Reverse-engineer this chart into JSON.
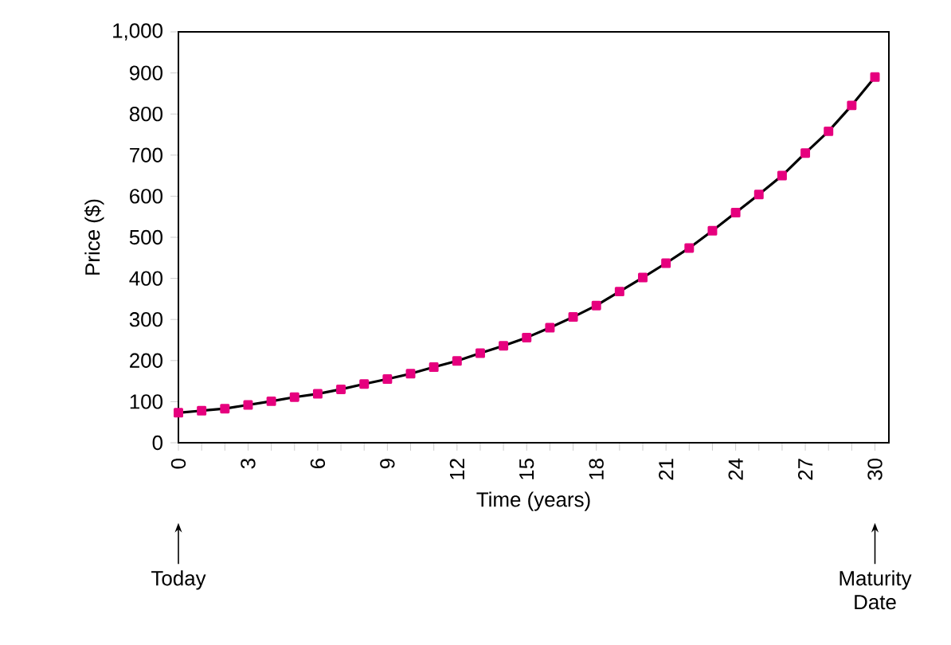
{
  "chart_data": {
    "type": "line",
    "xlabel": "Time (years)",
    "ylabel": "Price ($)",
    "x": [
      0,
      1,
      2,
      3,
      4,
      5,
      6,
      7,
      8,
      9,
      10,
      11,
      12,
      13,
      14,
      15,
      16,
      17,
      18,
      19,
      20,
      21,
      22,
      23,
      24,
      25,
      26,
      27,
      28,
      29,
      30
    ],
    "series": [
      {
        "color": "#e6007e",
        "values": [
          73,
          78,
          83,
          92,
          101,
          111,
          119,
          130,
          143,
          155,
          168,
          184,
          199,
          218,
          236,
          256,
          280,
          306,
          334,
          368,
          402,
          437,
          474,
          516,
          560,
          604,
          650,
          705,
          758,
          821,
          890
        ]
      }
    ],
    "xlim": [
      0,
      30.6
    ],
    "ylim": [
      0,
      1000
    ],
    "xticks": [
      0,
      {
        "value": 1,
        "label": null
      },
      {
        "value": 2,
        "label": null
      },
      3,
      {
        "value": 4,
        "label": null
      },
      {
        "value": 5,
        "label": null
      },
      6,
      {
        "value": 7,
        "label": null
      },
      {
        "value": 8,
        "label": null
      },
      9,
      {
        "value": 10,
        "label": null
      },
      {
        "value": 11,
        "label": null
      },
      12,
      {
        "value": 13,
        "label": null
      },
      {
        "value": 14,
        "label": null
      },
      15,
      {
        "value": 16,
        "label": null
      },
      {
        "value": 17,
        "label": null
      },
      18,
      {
        "value": 19,
        "label": null
      },
      {
        "value": 20,
        "label": null
      },
      21,
      {
        "value": 22,
        "label": null
      },
      {
        "value": 23,
        "label": null
      },
      24,
      {
        "value": 25,
        "label": null
      },
      {
        "value": 26,
        "label": null
      },
      27,
      {
        "value": 28,
        "label": null
      },
      {
        "value": 29,
        "label": null
      },
      30
    ],
    "yticks": [
      0,
      100,
      200,
      300,
      400,
      500,
      600,
      700,
      800,
      900,
      {
        "value": 1000,
        "label": "1,000"
      }
    ],
    "marker": "square",
    "line_style": "solid",
    "grid": false,
    "annotations": [
      "Today",
      "Maturity Date"
    ]
  }
}
